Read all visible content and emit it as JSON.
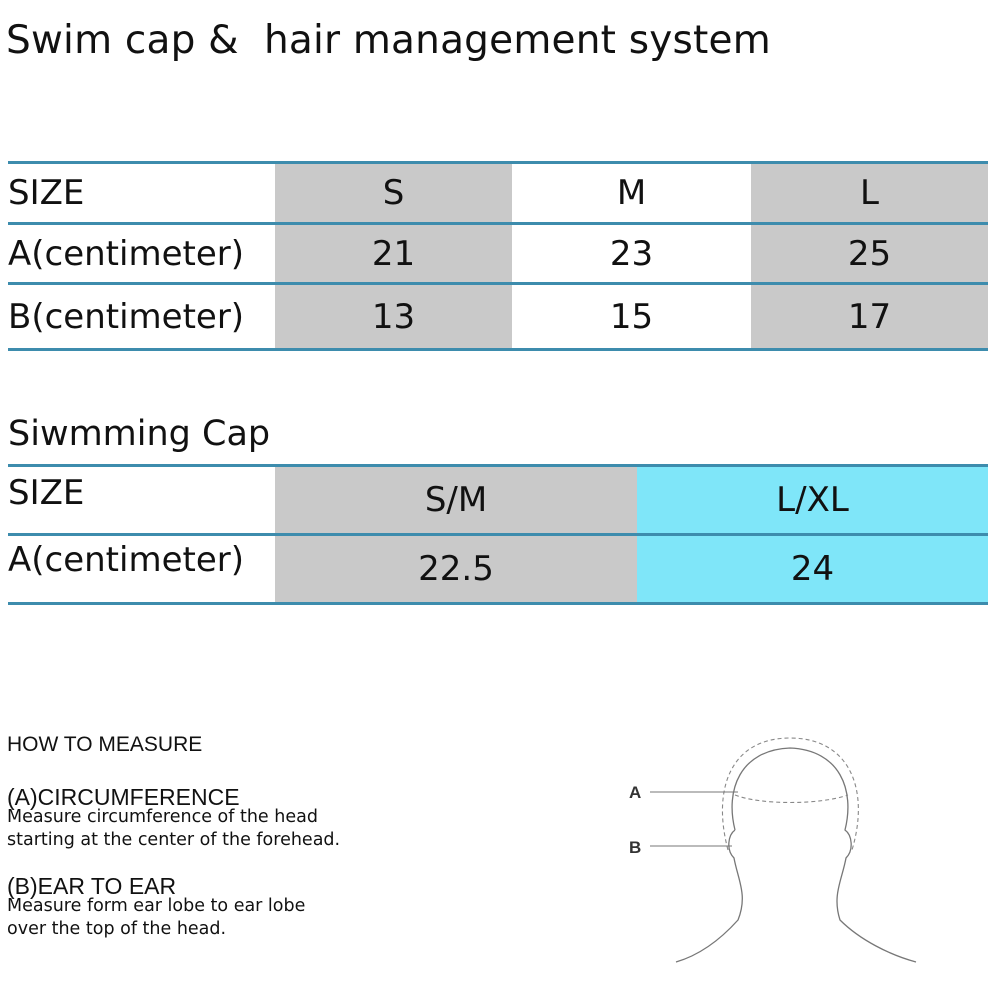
{
  "title": "Swim cap &  hair management system",
  "table1": {
    "header": {
      "label": "SIZE",
      "cols": [
        "S",
        "M",
        "L"
      ]
    },
    "rows": [
      {
        "label": "A(centimeter)",
        "values": [
          "21",
          "23",
          "25"
        ]
      },
      {
        "label": "B(centimeter)",
        "values": [
          "13",
          "15",
          "17"
        ]
      }
    ]
  },
  "table2": {
    "heading": "Siwmming Cap",
    "header": {
      "label": "SIZE",
      "cols": [
        "S/M",
        "L/XL"
      ]
    },
    "rows": [
      {
        "label": "A(centimeter)",
        "values": [
          "22.5",
          "24"
        ]
      }
    ]
  },
  "measure": {
    "heading": "HOW TO MEASURE",
    "a_title": "(A)CIRCUMFERENCE",
    "a_line1": "Measure circumference of the head",
    "a_line2": "starting at the center of the forehead.",
    "b_title": "(B)EAR TO EAR",
    "b_line1": "Measure form ear lobe to ear lobe",
    "b_line2": "over the top of the head."
  },
  "figure": {
    "label_a": "A",
    "label_b": "B"
  },
  "colors": {
    "rule": "#3d8cad",
    "gray": "#c9c9c9",
    "cyan": "#7fe6f9"
  }
}
